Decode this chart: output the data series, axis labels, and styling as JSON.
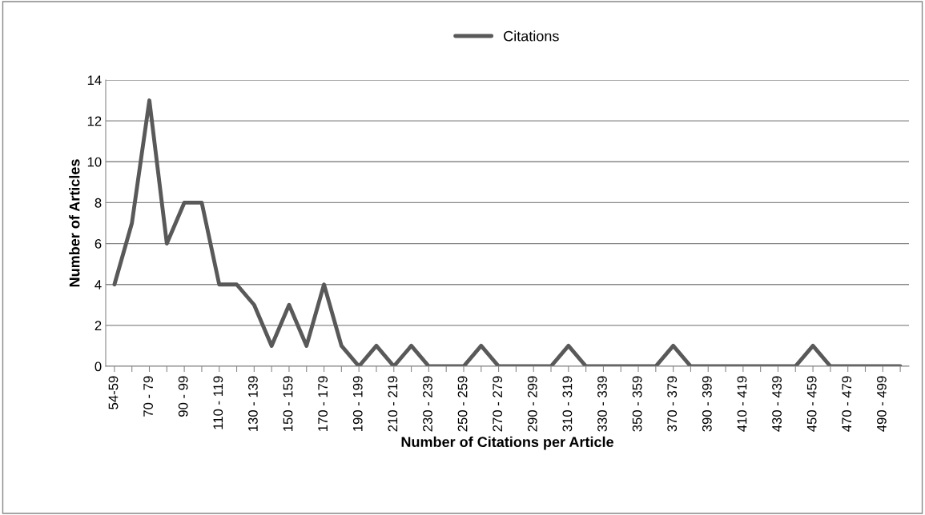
{
  "chart_data": {
    "type": "line",
    "xlabel": "Number of Citations per Article",
    "ylabel": "Number of Articles",
    "categories": [
      "54-59",
      null,
      "70 - 79",
      null,
      "90 - 99",
      null,
      "110 - 119",
      null,
      "130 - 139",
      null,
      "150 - 159",
      null,
      "170 - 179",
      null,
      "190 - 199",
      null,
      "210 - 219",
      null,
      "230 - 239",
      null,
      "250 - 259",
      null,
      "270 - 279",
      null,
      "290 - 299",
      null,
      "310 - 319",
      null,
      "330 - 339",
      null,
      "350 - 359",
      null,
      "370 - 379",
      null,
      "390 - 399",
      null,
      "410 - 419",
      null,
      "430 - 439",
      null,
      "450 - 459",
      null,
      "470 - 479",
      null,
      "490 - 499",
      null
    ],
    "series": [
      {
        "name": "Citations",
        "color": "#595959",
        "values": [
          4,
          7,
          13,
          6,
          8,
          8,
          4,
          4,
          3,
          1,
          3,
          1,
          4,
          1,
          0,
          1,
          0,
          1,
          0,
          0,
          0,
          1,
          0,
          0,
          0,
          0,
          1,
          0,
          0,
          0,
          0,
          0,
          1,
          0,
          0,
          0,
          0,
          0,
          0,
          0,
          1,
          0,
          0,
          0,
          0,
          0
        ]
      }
    ],
    "ylim": [
      0,
      14
    ],
    "yticks": [
      0,
      2,
      4,
      6,
      8,
      10,
      12,
      14
    ],
    "grid": "y",
    "legend": "top",
    "marker": "none",
    "line_style": "solid"
  }
}
